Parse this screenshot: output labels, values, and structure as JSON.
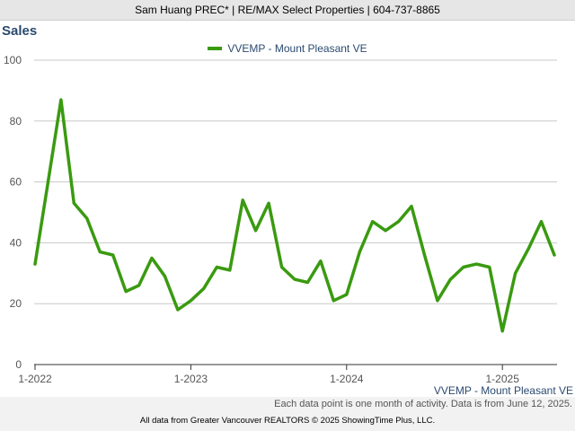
{
  "header": {
    "text": "Sam Huang PREC* | RE/MAX Select Properties | 604-737-8865"
  },
  "chart_data": {
    "type": "line",
    "title": "Sales",
    "series": [
      {
        "name": "VVEMP - Mount Pleasant VE",
        "color": "#3a9a10",
        "values": [
          33,
          60,
          87,
          53,
          48,
          37,
          36,
          24,
          26,
          35,
          29,
          18,
          21,
          25,
          32,
          31,
          54,
          44,
          53,
          32,
          28,
          27,
          34,
          21,
          23,
          37,
          47,
          44,
          47,
          52,
          36,
          21,
          28,
          32,
          33,
          32,
          11,
          30,
          38,
          47,
          36
        ]
      }
    ],
    "x_start": "1-2022",
    "x_tick_labels": [
      "1-2022",
      "1-2023",
      "1-2024",
      "1-2025"
    ],
    "x_tick_every": 12,
    "ylim": [
      0,
      100
    ],
    "y_ticks": [
      0,
      20,
      40,
      60,
      80,
      100
    ],
    "grid": true,
    "legend": "top-center"
  },
  "watermark": "VVEMP - Mount Pleasant VE",
  "footer": {
    "note": "Each data point is one month of activity. Data is from June 12, 2025.",
    "copyright": "All data from Greater Vancouver REALTORS © 2025 ShowingTime Plus, LLC."
  }
}
